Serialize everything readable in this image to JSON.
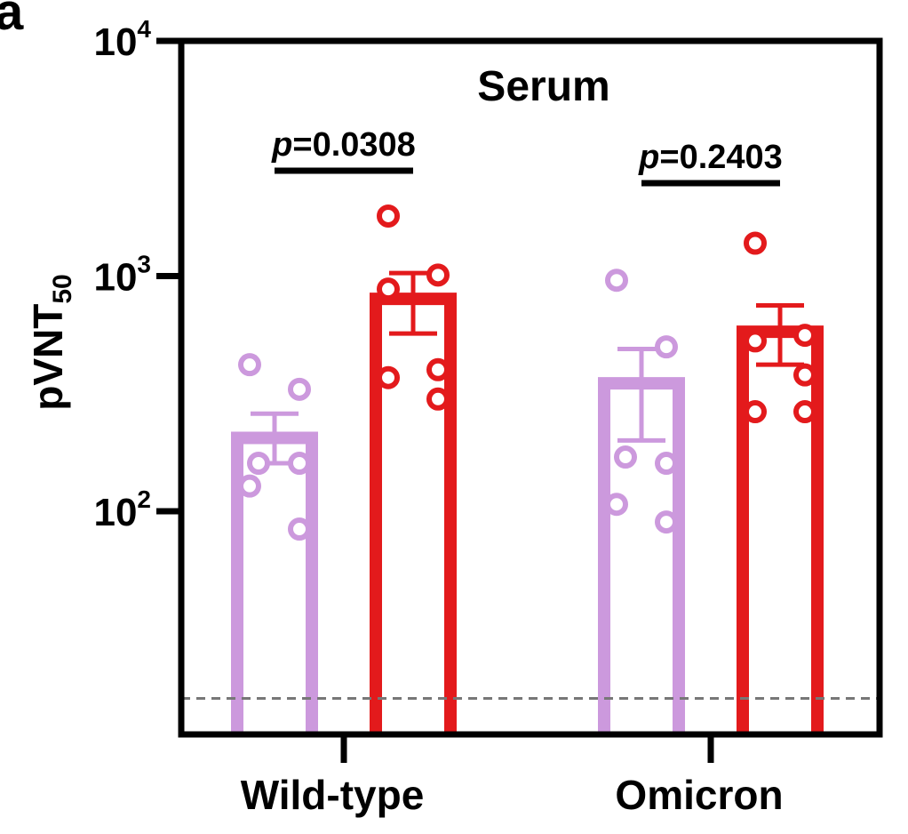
{
  "panel_label": "a",
  "chart_data": {
    "type": "bar",
    "title": "Serum",
    "ylabel": "pVNT",
    "ylabel_sub": "50",
    "xlabel": "",
    "y_scale": "log",
    "ylim": [
      14,
      10000
    ],
    "yticks": [
      {
        "value": 100,
        "base": "10",
        "exp": "2"
      },
      {
        "value": 1000,
        "base": "10",
        "exp": "3"
      },
      {
        "value": 10000,
        "base": "10",
        "exp": "4"
      }
    ],
    "categories": [
      "Wild-type",
      "Omicron"
    ],
    "series": [
      {
        "color": "#cc99dd",
        "values": [
          205,
          350
        ],
        "sem_upper": [
          260,
          490
        ],
        "sem_lower": [
          160,
          200
        ],
        "points": [
          [
            420,
            330,
            160,
            160,
            128,
            84
          ],
          [
            960,
            500,
            170,
            160,
            107,
            90
          ]
        ]
      },
      {
        "color": "#e31a1c",
        "values": [
          800,
          580
        ],
        "sem_upper": [
          1030,
          750
        ],
        "sem_lower": [
          570,
          420
        ],
        "points": [
          [
            1800,
            1010,
            880,
            400,
            370,
            300
          ],
          [
            1380,
            560,
            530,
            380,
            265,
            265
          ]
        ]
      }
    ],
    "comparisons": [
      {
        "category": "Wild-type",
        "p_label": "p",
        "p_value": "=0.0308"
      },
      {
        "category": "Omicron",
        "p_label": "p",
        "p_value": "=0.2403"
      }
    ],
    "limit_of_detection": 16,
    "grid": false,
    "legend": "none"
  }
}
